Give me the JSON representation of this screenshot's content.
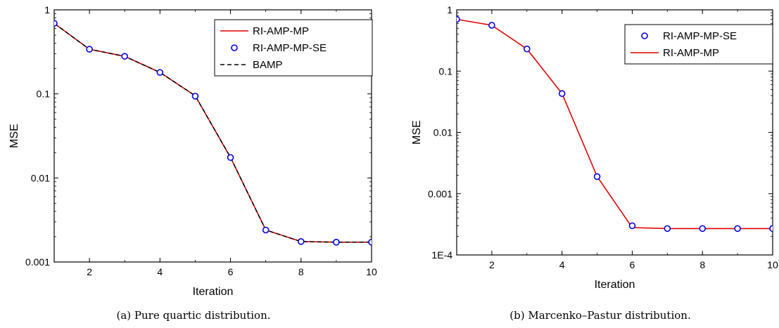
{
  "chart_data": [
    {
      "type": "line",
      "caption": "(a) Pure quartic distribution.",
      "xlabel": "Iteration",
      "ylabel": "MSE",
      "xlim": [
        1,
        10
      ],
      "ylim": [
        0.001,
        1
      ],
      "yscale": "log",
      "x_ticks": [
        2,
        4,
        6,
        8,
        10
      ],
      "x_tick_labels": [
        "2",
        "4",
        "6",
        "8",
        "10"
      ],
      "y_ticks": [
        0.001,
        0.01,
        0.1,
        1
      ],
      "y_tick_labels": [
        "0.001",
        "0.01",
        "0.1",
        "1"
      ],
      "legend_position": "top-right",
      "x": [
        1,
        2,
        3,
        4,
        5,
        6,
        7,
        8,
        9,
        10
      ],
      "series": [
        {
          "name": "RI-AMP-MP",
          "style": "line",
          "color": "#e00000",
          "values": [
            0.69,
            0.34,
            0.28,
            0.18,
            0.095,
            0.0175,
            0.0024,
            0.00175,
            0.00172,
            0.00172
          ]
        },
        {
          "name": "RI-AMP-MP-SE",
          "style": "marker",
          "color": "#0000e0",
          "values": [
            0.69,
            0.34,
            0.28,
            0.18,
            0.094,
            0.0175,
            0.0024,
            0.00175,
            0.00172,
            0.00172
          ]
        },
        {
          "name": "BAMP",
          "style": "dashed",
          "color": "#000000",
          "values": [
            0.69,
            0.34,
            0.28,
            0.18,
            0.095,
            0.0175,
            0.0024,
            0.00175,
            0.00172,
            0.00172
          ]
        }
      ]
    },
    {
      "type": "line",
      "caption": "(b) Marcenko–Pastur distribution.",
      "xlabel": "Iteration",
      "ylabel": "MSE",
      "xlim": [
        1,
        10
      ],
      "ylim": [
        0.0001,
        1
      ],
      "yscale": "log",
      "x_ticks": [
        2,
        4,
        6,
        8,
        10
      ],
      "x_tick_labels": [
        "2",
        "4",
        "6",
        "8",
        "10"
      ],
      "y_ticks": [
        0.0001,
        0.001,
        0.01,
        0.1,
        1
      ],
      "y_tick_labels": [
        "1E-4",
        "0.001",
        "0.01",
        "0.1",
        "1"
      ],
      "legend_position": "top-right",
      "x": [
        1,
        2,
        3,
        4,
        5,
        6,
        7,
        8,
        9,
        10
      ],
      "series": [
        {
          "name": "RI-AMP-MP-SE",
          "style": "marker",
          "color": "#0000e0",
          "values": [
            0.7,
            0.56,
            0.23,
            0.043,
            0.0019,
            0.0003,
            0.00027,
            0.00027,
            0.00027,
            0.00027
          ]
        },
        {
          "name": "RI-AMP-MP",
          "style": "line",
          "color": "#e00000",
          "values": [
            0.7,
            0.56,
            0.23,
            0.043,
            0.0019,
            0.00028,
            0.00027,
            0.00027,
            0.00027,
            0.00027
          ]
        }
      ]
    }
  ]
}
